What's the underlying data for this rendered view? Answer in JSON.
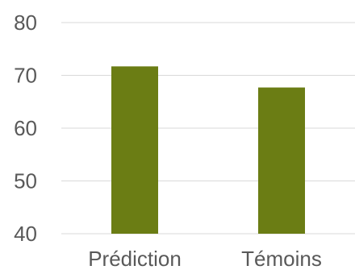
{
  "chart_data": {
    "type": "bar",
    "categories": [
      "Prédiction",
      "Témoins"
    ],
    "series": [
      {
        "values": [
          71.7,
          67.7
        ],
        "color": "#6b7d14"
      }
    ],
    "ylim": [
      40,
      80
    ],
    "yticks": [
      40,
      50,
      60,
      70,
      80
    ],
    "grid": true,
    "title": "",
    "xlabel": "",
    "ylabel": ""
  }
}
